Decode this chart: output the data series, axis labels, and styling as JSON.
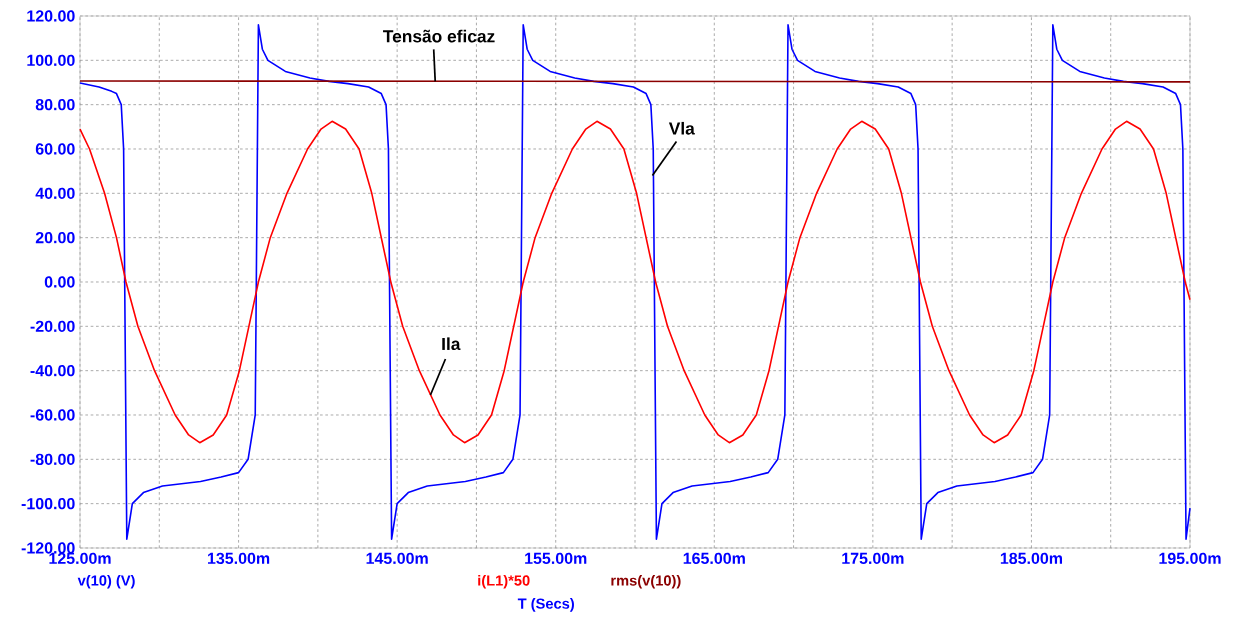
{
  "chart_data": {
    "type": "line",
    "xlabel": "T (Secs)",
    "xlim": [
      125,
      195
    ],
    "xticks": [
      {
        "value": 125,
        "label": "125.00m"
      },
      {
        "value": 130,
        "label": null
      },
      {
        "value": 135,
        "label": "135.00m"
      },
      {
        "value": 140,
        "label": null
      },
      {
        "value": 145,
        "label": "145.00m"
      },
      {
        "value": 150,
        "label": null
      },
      {
        "value": 155,
        "label": "155.00m"
      },
      {
        "value": 160,
        "label": null
      },
      {
        "value": 165,
        "label": "165.00m"
      },
      {
        "value": 170,
        "label": null
      },
      {
        "value": 175,
        "label": "175.00m"
      },
      {
        "value": 180,
        "label": null
      },
      {
        "value": 185,
        "label": "185.00m"
      },
      {
        "value": 190,
        "label": null
      },
      {
        "value": 195,
        "label": "195.00m"
      }
    ],
    "ylim": [
      -120,
      120
    ],
    "yticks": [
      {
        "value": -120,
        "label": "-120.00"
      },
      {
        "value": -100,
        "label": "-100.00"
      },
      {
        "value": -80,
        "label": "-80.00"
      },
      {
        "value": -60,
        "label": "-60.00"
      },
      {
        "value": -40,
        "label": "-40.00"
      },
      {
        "value": -20,
        "label": "-20.00"
      },
      {
        "value": 0,
        "label": "0.00"
      },
      {
        "value": 20,
        "label": "20.00"
      },
      {
        "value": 40,
        "label": "40.00"
      },
      {
        "value": 60,
        "label": "60.00"
      },
      {
        "value": 80,
        "label": "80.00"
      },
      {
        "value": 100,
        "label": "100.00"
      },
      {
        "value": 120,
        "label": "120.00"
      }
    ],
    "grid": true,
    "legend": "bottom",
    "line_style": "solid",
    "series": [
      {
        "name": "v(10) (V)",
        "color": "#0000ff",
        "x": [
          125.0,
          126.2,
          127.0,
          127.3,
          127.6,
          127.75,
          127.95,
          128.3,
          129.0,
          130.2,
          132.6,
          133.9,
          135.0,
          135.6,
          136.05,
          136.25,
          136.5,
          136.85,
          137.95,
          139.5,
          140.7,
          141.9,
          143.2,
          144.0,
          144.3,
          144.45,
          144.65,
          145.0,
          145.7,
          146.9,
          149.3,
          150.6,
          151.7,
          152.3,
          152.75,
          152.95,
          153.2,
          153.55,
          154.65,
          156.2,
          157.4,
          158.6,
          159.9,
          160.7,
          161.0,
          161.15,
          161.35,
          161.7,
          162.4,
          163.6,
          166.0,
          167.3,
          168.4,
          169.0,
          169.45,
          169.65,
          169.9,
          170.25,
          171.35,
          172.9,
          174.1,
          175.3,
          176.6,
          177.4,
          177.7,
          177.85,
          178.05,
          178.4,
          179.1,
          180.3,
          182.7,
          184.0,
          185.1,
          185.7,
          186.15,
          186.35,
          186.6,
          186.95,
          188.05,
          189.6,
          190.8,
          192.0,
          193.3,
          194.1,
          194.4,
          194.55,
          194.75,
          195.0
        ],
        "values": [
          89.8,
          88,
          86,
          85,
          80,
          60,
          -116,
          -100,
          -95,
          -92,
          -90,
          -88,
          -86,
          -80,
          -60,
          116,
          105,
          100,
          95,
          92,
          90.5,
          89.5,
          88,
          85,
          80,
          60,
          -116,
          -100,
          -95,
          -92,
          -90,
          -88,
          -86,
          -80,
          -60,
          116,
          105,
          100,
          95,
          92,
          90.5,
          89.5,
          88,
          85,
          80,
          60,
          -116,
          -100,
          -95,
          -92,
          -90,
          -88,
          -86,
          -80,
          -60,
          116,
          105,
          100,
          95,
          92,
          90.5,
          89.5,
          88,
          85,
          80,
          60,
          -116,
          -100,
          -95,
          -92,
          -90,
          -88,
          -86,
          -80,
          -60,
          116,
          105,
          100,
          95,
          92,
          90.5,
          89.5,
          88,
          85,
          80,
          60,
          -116,
          -102
        ]
      },
      {
        "name": "i(L1)*50",
        "color": "#ff0000",
        "x": [
          125.0,
          125.6,
          126.55,
          127.3,
          127.9,
          128.65,
          129.7,
          131.0,
          131.85,
          132.55,
          133.4,
          134.25,
          135.05,
          135.65,
          136.25,
          137.0,
          138.05,
          139.35,
          140.2,
          140.9,
          141.75,
          142.6,
          143.4,
          144.0,
          144.6,
          145.35,
          146.4,
          147.7,
          148.55,
          149.25,
          150.1,
          150.95,
          151.75,
          152.35,
          152.95,
          153.7,
          154.75,
          156.05,
          156.9,
          157.6,
          158.45,
          159.3,
          160.1,
          160.7,
          161.3,
          162.05,
          163.1,
          164.4,
          165.25,
          165.95,
          166.8,
          167.65,
          168.45,
          169.05,
          169.65,
          170.4,
          171.45,
          172.75,
          173.6,
          174.3,
          175.15,
          176.0,
          176.8,
          177.4,
          178.0,
          178.75,
          179.8,
          181.1,
          181.95,
          182.65,
          183.5,
          184.35,
          185.15,
          185.75,
          186.35,
          187.1,
          188.15,
          189.45,
          190.3,
          191.0,
          191.85,
          192.7,
          193.5,
          194.1,
          194.7,
          195.0
        ],
        "values": [
          69,
          60,
          40,
          20,
          0,
          -20,
          -40,
          -60,
          -69,
          -72.5,
          -69,
          -60,
          -40,
          -20,
          0,
          20,
          40,
          60,
          69,
          72.5,
          69,
          60,
          40,
          20,
          0,
          -20,
          -40,
          -60,
          -69,
          -72.5,
          -69,
          -60,
          -40,
          -20,
          0,
          20,
          40,
          60,
          69,
          72.5,
          69,
          60,
          40,
          20,
          0,
          -20,
          -40,
          -60,
          -69,
          -72.5,
          -69,
          -60,
          -40,
          -20,
          0,
          20,
          40,
          60,
          69,
          72.5,
          69,
          60,
          40,
          20,
          0,
          -20,
          -40,
          -60,
          -69,
          -72.5,
          -69,
          -60,
          -40,
          -20,
          0,
          20,
          40,
          60,
          69,
          72.5,
          69,
          60,
          40,
          20,
          0,
          -8
        ]
      },
      {
        "name": "rms(v(10))",
        "color": "#8b0000",
        "x": [
          125.0,
          195.0
        ],
        "values": [
          90.7,
          90.3
        ]
      }
    ],
    "annotations": [
      {
        "text": "Tensão eficaz",
        "x": 147.4,
        "y": 90.5
      },
      {
        "text": "Vla",
        "x": 161.1,
        "y": 48
      },
      {
        "text": "Ila",
        "x": 147.1,
        "y": -51
      }
    ]
  }
}
